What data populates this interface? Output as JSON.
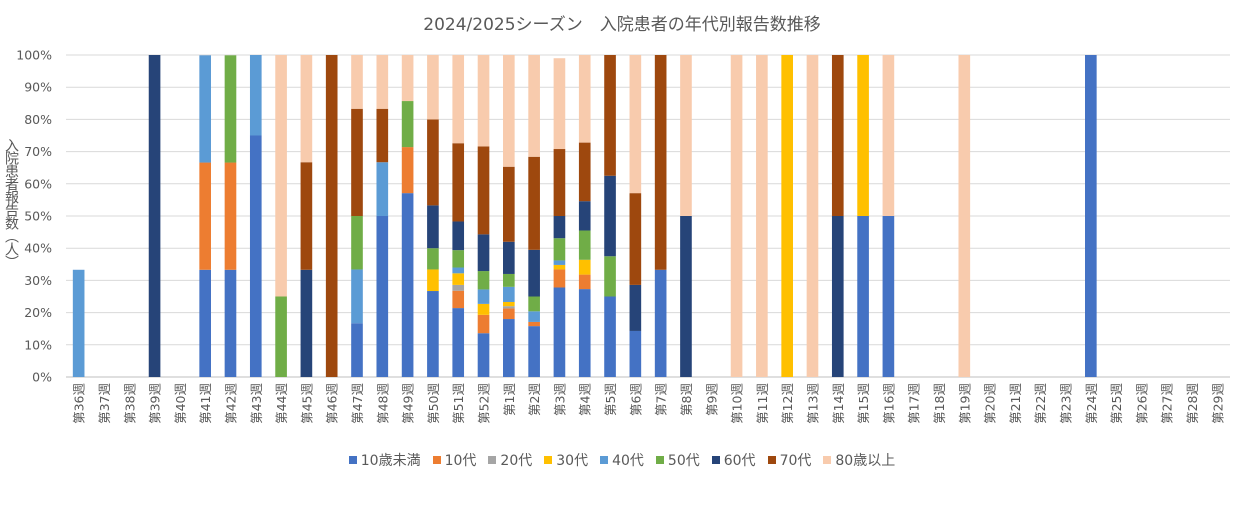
{
  "chart_data": {
    "type": "bar",
    "stacked": true,
    "title": "2024/2025シーズン　入院患者の年代別報告数推移",
    "ylabel": "入院患者報告数（人）",
    "xlabel": "",
    "ylim": [
      0,
      100
    ],
    "yticks": [
      "0%",
      "10%",
      "20%",
      "30%",
      "40%",
      "50%",
      "60%",
      "70%",
      "80%",
      "90%",
      "100%"
    ],
    "grid": true,
    "legend_position": "bottom",
    "categories": [
      "第36週",
      "第37週",
      "第38週",
      "第39週",
      "第40週",
      "第41週",
      "第42週",
      "第43週",
      "第44週",
      "第45週",
      "第46週",
      "第47週",
      "第48週",
      "第49週",
      "第50週",
      "第51週",
      "第52週",
      "第1週",
      "第2週",
      "第3週",
      "第4週",
      "第5週",
      "第6週",
      "第7週",
      "第8週",
      "第9週",
      "第10週",
      "第11週",
      "第12週",
      "第13週",
      "第14週",
      "第15週",
      "第16週",
      "第17週",
      "第18週",
      "第19週",
      "第20週",
      "第21週",
      "第22週",
      "第23週",
      "第24週",
      "第25週",
      "第26週",
      "第27週",
      "第28週",
      "第29週"
    ],
    "series": [
      {
        "name": "10歳未満",
        "color": "#4472c4",
        "values": [
          0,
          0,
          0,
          0,
          0,
          33.3,
          33.3,
          75,
          0,
          0,
          0,
          16.7,
          50,
          57.1,
          26.7,
          21.4,
          13.6,
          18,
          15.8,
          27.8,
          27.3,
          25,
          14.3,
          33.3,
          0,
          0,
          0,
          0,
          0,
          0,
          0,
          50,
          50,
          0,
          0,
          0,
          0,
          0,
          0,
          0,
          100,
          0,
          0,
          0,
          0,
          0
        ]
      },
      {
        "name": "10代",
        "color": "#ed7d31",
        "values": [
          0,
          0,
          0,
          0,
          0,
          33.3,
          33.3,
          0,
          0,
          0,
          0,
          0,
          0,
          14.3,
          0,
          5.4,
          5.7,
          3.3,
          1.3,
          5.6,
          4.5,
          0,
          0,
          0,
          0,
          0,
          0,
          0,
          0,
          0,
          0,
          0,
          0,
          0,
          0,
          0,
          0,
          0,
          0,
          0,
          0,
          0,
          0,
          0,
          0,
          0
        ]
      },
      {
        "name": "20代",
        "color": "#a5a5a5",
        "values": [
          0,
          0,
          0,
          0,
          0,
          0,
          0,
          0,
          0,
          0,
          0,
          0,
          0,
          0,
          0,
          1.8,
          0,
          0.7,
          0,
          0,
          0,
          0,
          0,
          0,
          0,
          0,
          0,
          0,
          0,
          0,
          0,
          0,
          0,
          0,
          0,
          0,
          0,
          0,
          0,
          0,
          0,
          0,
          0,
          0,
          0,
          0
        ]
      },
      {
        "name": "30代",
        "color": "#ffc000",
        "values": [
          0,
          0,
          0,
          0,
          0,
          0,
          0,
          0,
          0,
          0,
          0,
          0,
          0,
          0,
          6.7,
          3.6,
          3.4,
          1.3,
          0,
          1.4,
          4.6,
          0,
          0,
          0,
          0,
          0,
          0,
          0,
          100,
          0,
          0,
          50,
          0,
          0,
          0,
          0,
          0,
          0,
          0,
          0,
          0,
          0,
          0,
          0,
          0,
          0
        ]
      },
      {
        "name": "40代",
        "color": "#5b9bd5",
        "values": [
          33.3,
          0,
          0,
          0,
          0,
          33.3,
          0,
          25,
          0,
          0,
          0,
          16.7,
          16.7,
          0,
          0,
          1.8,
          4.5,
          4.7,
          3.3,
          1.4,
          0,
          0,
          0,
          0,
          0,
          0,
          0,
          0,
          0,
          0,
          0,
          0,
          0,
          0,
          0,
          0,
          0,
          0,
          0,
          0,
          0,
          0,
          0,
          0,
          0,
          0
        ]
      },
      {
        "name": "50代",
        "color": "#70ad47",
        "values": [
          0,
          0,
          0,
          0,
          0,
          0,
          33.3,
          0,
          25,
          0,
          0,
          16.6,
          0,
          14.3,
          6.6,
          5.4,
          5.7,
          4,
          4.6,
          6.9,
          9.1,
          12.5,
          0,
          0,
          0,
          0,
          0,
          0,
          0,
          0,
          0,
          0,
          0,
          0,
          0,
          0,
          0,
          0,
          0,
          0,
          0,
          0,
          0,
          0,
          0,
          0
        ]
      },
      {
        "name": "60代",
        "color": "#264478",
        "values": [
          0,
          0,
          0,
          100,
          0,
          0,
          0,
          0,
          0,
          33.3,
          0,
          0,
          0,
          0,
          13.3,
          8.9,
          11.4,
          10,
          14.5,
          6.9,
          9.1,
          25,
          14.3,
          0,
          50,
          0,
          0,
          0,
          0,
          0,
          50,
          0,
          0,
          0,
          0,
          0,
          0,
          0,
          0,
          0,
          0,
          0,
          0,
          0,
          0,
          0
        ]
      },
      {
        "name": "70代",
        "color": "#9e480e",
        "values": [
          0,
          0,
          0,
          0,
          0,
          0,
          0,
          0,
          0,
          33.4,
          100,
          33.3,
          16.6,
          0,
          26.7,
          24.3,
          27.3,
          23.3,
          28.9,
          20.8,
          18.2,
          37.5,
          28.5,
          66.7,
          0,
          0,
          0,
          0,
          0,
          0,
          50,
          0,
          0,
          0,
          0,
          0,
          0,
          0,
          0,
          0,
          0,
          0,
          0,
          0,
          0,
          0
        ]
      },
      {
        "name": "80歳以上",
        "color": "#f8cbad",
        "values": [
          0,
          0,
          0,
          0,
          0,
          0,
          0,
          0,
          75,
          33.3,
          0,
          16.7,
          16.7,
          14.3,
          20,
          27.4,
          28.4,
          34.7,
          31.6,
          28.2,
          27.2,
          0,
          42.9,
          0,
          50,
          0,
          100,
          100,
          0,
          100,
          0,
          0,
          50,
          0,
          0,
          100,
          0,
          0,
          0,
          0,
          0,
          0,
          0,
          0,
          0,
          0
        ]
      }
    ]
  }
}
